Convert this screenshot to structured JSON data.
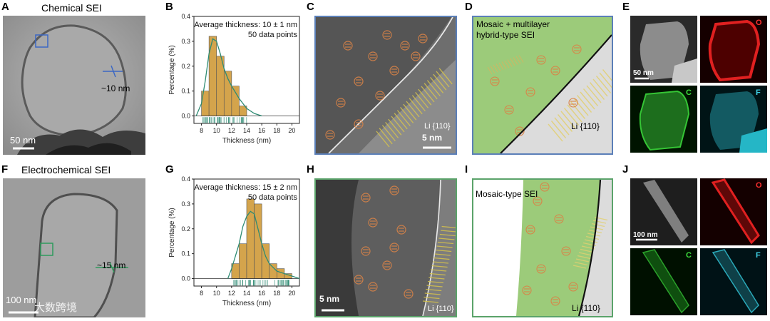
{
  "panels": {
    "A": {
      "letter": "A",
      "title": "Chemical SEI",
      "scale": "50 nm",
      "thickness": "~10 nm"
    },
    "B": {
      "letter": "B"
    },
    "C": {
      "letter": "C",
      "plane": "Li {110}",
      "scale": "5 nm"
    },
    "D": {
      "letter": "D",
      "title_line1": "Mosaic + multilayer",
      "title_line2": "hybrid-type SEI",
      "plane": "Li {110}"
    },
    "E": {
      "letter": "E",
      "scale": "50 nm",
      "elements": [
        "O",
        "C",
        "F"
      ]
    },
    "F": {
      "letter": "F",
      "title": "Electrochemical SEI",
      "scale": "100 nm",
      "thickness": "~15 nm"
    },
    "G": {
      "letter": "G"
    },
    "H": {
      "letter": "H",
      "plane": "Li {110}",
      "scale": "5 nm"
    },
    "I": {
      "letter": "I",
      "title": "Mosaic-type SEI",
      "plane": "Li {110}"
    },
    "J": {
      "letter": "J",
      "scale": "100 nm",
      "elements": [
        "O",
        "C",
        "F"
      ]
    }
  },
  "watermark": "大数跨境",
  "colors": {
    "bar": "#D4A44C",
    "fit": "#2E8B73",
    "sei_green": "#9CCB7A",
    "border_blue": "#5B7FB8",
    "border_green": "#5BA36A"
  },
  "chart_data": [
    {
      "type": "bar",
      "panel": "B",
      "annotation": "Average thickness: 10 ± 1 nm",
      "annotation2": "50 data points",
      "xlabel": "Thickness (nm)",
      "ylabel": "Percentage (%)",
      "xlim": [
        7,
        21
      ],
      "ylim": [
        -0.03,
        0.4
      ],
      "xticks": [
        8,
        10,
        12,
        14,
        16,
        18,
        20
      ],
      "yticks": [
        0.0,
        0.1,
        0.2,
        0.3,
        0.4
      ],
      "bins": [
        [
          8,
          9
        ],
        [
          9,
          10
        ],
        [
          10,
          11
        ],
        [
          11,
          12
        ],
        [
          12,
          13
        ],
        [
          13,
          14
        ]
      ],
      "values": [
        0.1,
        0.32,
        0.24,
        0.18,
        0.12,
        0.04
      ],
      "fit_curve": {
        "x": [
          7.3,
          8,
          8.5,
          9,
          9.5,
          10,
          10.5,
          11,
          11.5,
          12,
          13,
          14,
          15,
          16
        ],
        "y": [
          0.0,
          0.05,
          0.14,
          0.25,
          0.31,
          0.3,
          0.25,
          0.19,
          0.15,
          0.12,
          0.07,
          0.03,
          0.01,
          0.0
        ]
      }
    },
    {
      "type": "bar",
      "panel": "G",
      "annotation": "Average thickness: 15 ± 2 nm",
      "annotation2": "50 data points",
      "xlabel": "Thickness (nm)",
      "ylabel": "Percentage (%)",
      "xlim": [
        7,
        21
      ],
      "ylim": [
        -0.03,
        0.4
      ],
      "xticks": [
        8,
        10,
        12,
        14,
        16,
        18,
        20
      ],
      "yticks": [
        0.0,
        0.1,
        0.2,
        0.3,
        0.4
      ],
      "bins": [
        [
          12,
          13
        ],
        [
          13,
          14
        ],
        [
          14,
          15
        ],
        [
          15,
          16
        ],
        [
          16,
          17
        ],
        [
          17,
          18
        ],
        [
          18,
          19
        ],
        [
          19,
          20
        ]
      ],
      "values": [
        0.06,
        0.14,
        0.32,
        0.3,
        0.14,
        0.06,
        0.04,
        0.02
      ],
      "fit_curve": {
        "x": [
          11.5,
          12,
          12.5,
          13,
          13.5,
          14,
          14.5,
          15,
          15.5,
          16,
          16.5,
          17,
          18,
          19,
          20,
          21
        ],
        "y": [
          0.0,
          0.04,
          0.09,
          0.14,
          0.21,
          0.25,
          0.27,
          0.26,
          0.2,
          0.14,
          0.09,
          0.06,
          0.03,
          0.02,
          0.01,
          0.0
        ]
      }
    }
  ]
}
